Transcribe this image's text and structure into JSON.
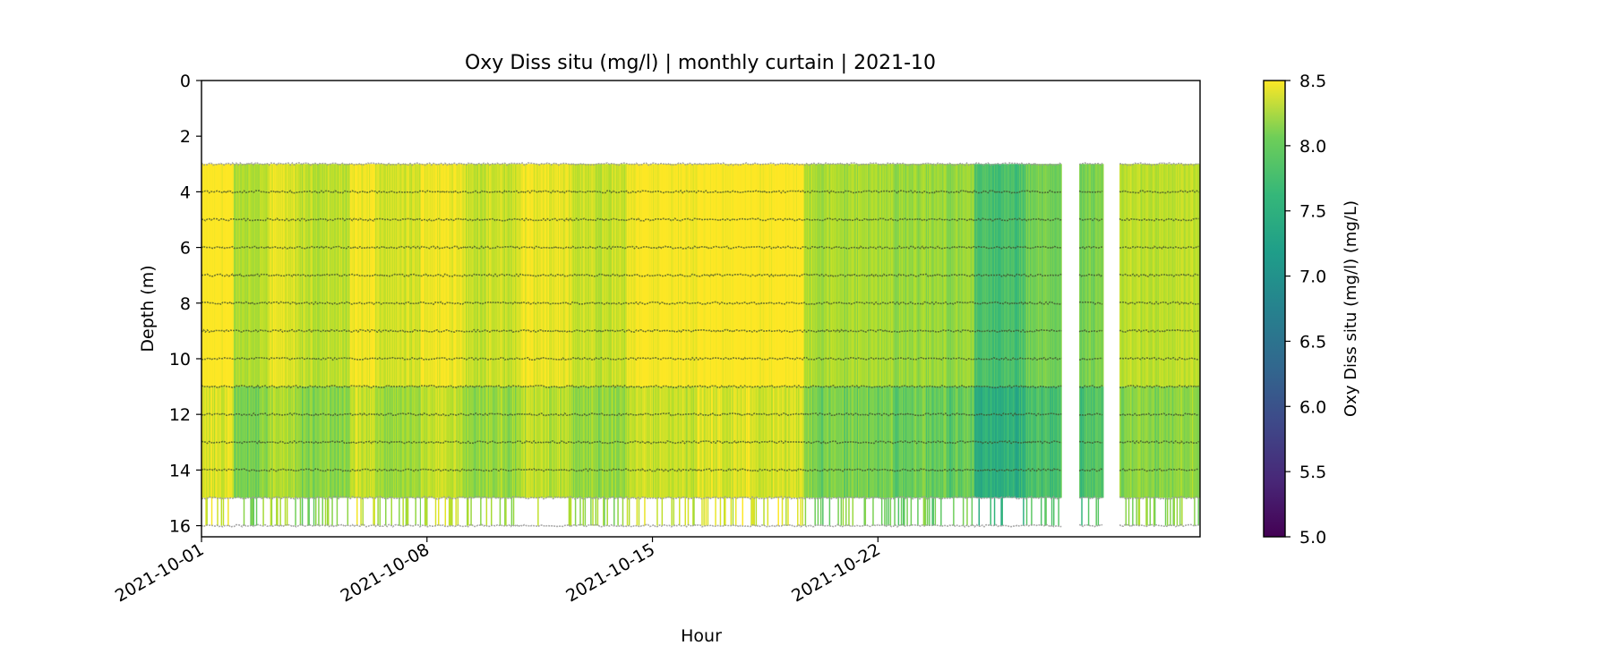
{
  "chart_data": {
    "type": "heatmap",
    "title": "Oxy Diss situ (mg/l) | monthly curtain | 2021-10",
    "xlabel": "Hour",
    "ylabel": "Depth (m)",
    "x_start": "2021-10-01",
    "x_end": "2021-11-01",
    "xlim_days": [
      0,
      31
    ],
    "ylim": [
      16.4,
      0
    ],
    "y_inverted": true,
    "x_ticks": [
      {
        "day": 0,
        "label": "2021-10-01"
      },
      {
        "day": 7,
        "label": "2021-10-08"
      },
      {
        "day": 14,
        "label": "2021-10-15"
      },
      {
        "day": 21,
        "label": "2021-10-22"
      }
    ],
    "y_ticks": [
      {
        "value": 0,
        "label": "0"
      },
      {
        "value": 2,
        "label": "2"
      },
      {
        "value": 4,
        "label": "4"
      },
      {
        "value": 6,
        "label": "6"
      },
      {
        "value": 8,
        "label": "8"
      },
      {
        "value": 10,
        "label": "10"
      },
      {
        "value": 12,
        "label": "12"
      },
      {
        "value": 14,
        "label": "14"
      },
      {
        "value": 16,
        "label": "16"
      }
    ],
    "colorbar": {
      "label": "Oxy Diss situ (mg/l) (mg/L)",
      "colormap": "viridis",
      "vmin": 5.0,
      "vmax": 8.5,
      "ticks": [
        {
          "value": 5.0,
          "label": "5.0"
        },
        {
          "value": 5.5,
          "label": "5.5"
        },
        {
          "value": 6.0,
          "label": "6.0"
        },
        {
          "value": 6.5,
          "label": "6.5"
        },
        {
          "value": 7.0,
          "label": "7.0"
        },
        {
          "value": 7.5,
          "label": "7.5"
        },
        {
          "value": 8.0,
          "label": "8.0"
        },
        {
          "value": 8.5,
          "label": "8.5"
        }
      ]
    },
    "sensor_depths": [
      3,
      4,
      5,
      6,
      7,
      8,
      9,
      10,
      11,
      12,
      13,
      14,
      15,
      16
    ],
    "surface_depth": 3.0,
    "data_gaps_days": [
      [
        26.7,
        27.25
      ],
      [
        28.0,
        28.5
      ]
    ],
    "segments": [
      {
        "start_day": 0.0,
        "end_day": 1.0,
        "value": 8.5
      },
      {
        "start_day": 1.0,
        "end_day": 2.1,
        "value": 8.05
      },
      {
        "start_day": 2.1,
        "end_day": 2.9,
        "value": 8.3
      },
      {
        "start_day": 2.9,
        "end_day": 4.6,
        "value": 8.1
      },
      {
        "start_day": 4.6,
        "end_day": 5.4,
        "value": 8.4
      },
      {
        "start_day": 5.4,
        "end_day": 6.8,
        "value": 8.2
      },
      {
        "start_day": 6.8,
        "end_day": 8.2,
        "value": 8.4
      },
      {
        "start_day": 8.2,
        "end_day": 9.8,
        "value": 8.15
      },
      {
        "start_day": 9.8,
        "end_day": 11.5,
        "value": 8.35
      },
      {
        "start_day": 11.5,
        "end_day": 13.2,
        "value": 8.15
      },
      {
        "start_day": 13.2,
        "end_day": 15.4,
        "value": 8.45
      },
      {
        "start_day": 15.4,
        "end_day": 18.7,
        "value": 8.5
      },
      {
        "start_day": 18.7,
        "end_day": 21.5,
        "value": 8.0
      },
      {
        "start_day": 21.5,
        "end_day": 24.0,
        "value": 7.9
      },
      {
        "start_day": 24.0,
        "end_day": 25.6,
        "value": 7.4
      },
      {
        "start_day": 25.6,
        "end_day": 26.7,
        "value": 7.7
      },
      {
        "start_day": 27.25,
        "end_day": 28.0,
        "value": 7.7
      },
      {
        "start_day": 28.5,
        "end_day": 31.0,
        "value": 8.1
      }
    ]
  }
}
